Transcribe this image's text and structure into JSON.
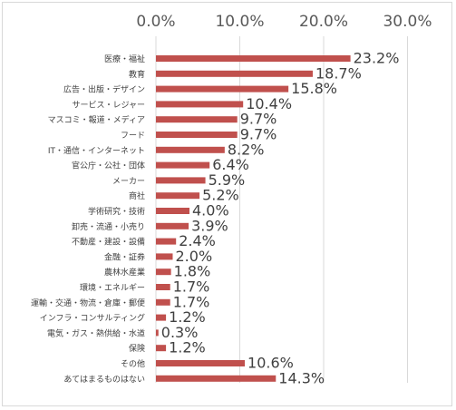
{
  "chart_data": {
    "type": "bar",
    "orientation": "horizontal",
    "title": "",
    "xlabel": "",
    "ylabel": "",
    "xlim": [
      0,
      30
    ],
    "x_ticks": [
      "0.0%",
      "10.0%",
      "20.0%",
      "30.0%"
    ],
    "x_tick_values": [
      0,
      10,
      20,
      30
    ],
    "grid": true,
    "bar_color": "#c0504d",
    "categories": [
      "医療・福祉",
      "教育",
      "広告・出版・デザイン",
      "サービス・レジャー",
      "マスコミ・報道・メディア",
      "フード",
      "IT・通信・インターネット",
      "官公庁・公社・団体",
      "メーカー",
      "商社",
      "学術研究・技術",
      "卸売・流通・小売り",
      "不動産・建設・設備",
      "金融・証券",
      "農林水産業",
      "環境・エネルギー",
      "運輸・交通・物流・倉庫・郵便",
      "インフラ・コンサルティング",
      "電気・ガス・熱供給・水道",
      "保険",
      "その他",
      "あてはまるものはない"
    ],
    "values": [
      23.2,
      18.7,
      15.8,
      10.4,
      9.7,
      9.7,
      8.2,
      6.4,
      5.9,
      5.2,
      4.0,
      3.9,
      2.4,
      2.0,
      1.8,
      1.7,
      1.7,
      1.2,
      0.3,
      1.2,
      10.6,
      14.3
    ],
    "data_labels": [
      "23.2%",
      "18.7%",
      "15.8%",
      "10.4%",
      "9.7%",
      "9.7%",
      "8.2%",
      "6.4%",
      "5.9%",
      "5.2%",
      "4.0%",
      "3.9%",
      "2.4%",
      "2.0%",
      "1.8%",
      "1.7%",
      "1.7%",
      "1.2%",
      "0.3%",
      "1.2%",
      "10.6%",
      "14.3%"
    ]
  }
}
